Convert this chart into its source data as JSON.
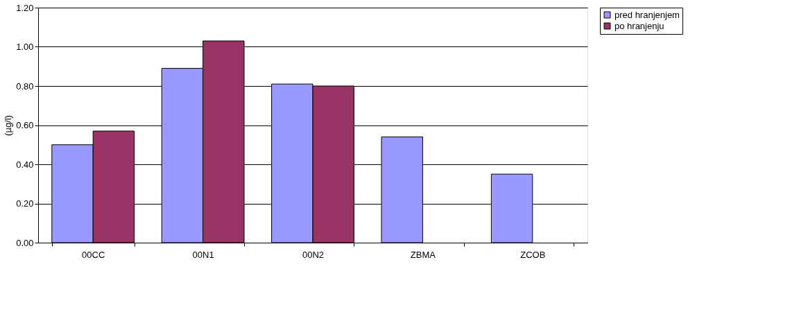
{
  "chart_data": {
    "type": "bar",
    "ylabel": "(µg/l)",
    "categories": [
      "00CC",
      "00N1",
      "00N2",
      "ZBMA",
      "ZCOB"
    ],
    "series": [
      {
        "name": "pred hranjenjem",
        "color": "#9999ff",
        "values": [
          0.5,
          0.89,
          0.81,
          0.54,
          0.35
        ]
      },
      {
        "name": "po hranjenju",
        "color": "#993366",
        "values": [
          0.57,
          1.03,
          0.8,
          null,
          null
        ]
      }
    ],
    "ylim": [
      0,
      1.2
    ],
    "yticks": [
      {
        "value": 0,
        "label": "0.00"
      },
      {
        "value": 0.2,
        "label": "0.20"
      },
      {
        "value": 0.4,
        "label": "0.40"
      },
      {
        "value": 0.6,
        "label": "0.60"
      },
      {
        "value": 0.8,
        "label": "0.80"
      },
      {
        "value": 1.0,
        "label": "1.00"
      },
      {
        "value": 1.2,
        "label": "1.20"
      }
    ],
    "grid": "y",
    "legend": "right"
  }
}
